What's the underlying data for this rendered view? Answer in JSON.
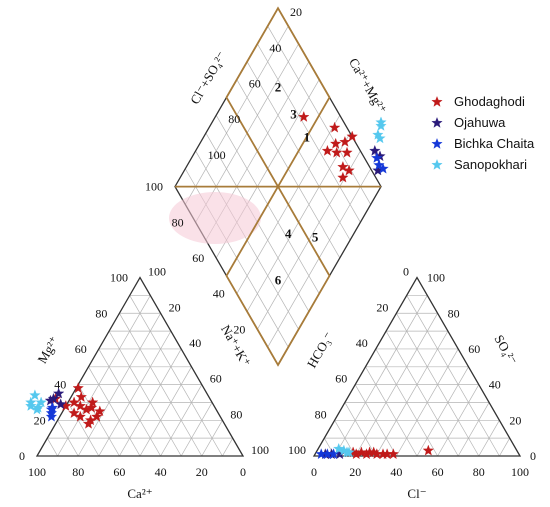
{
  "chart_data": {
    "type": "scatter",
    "diagram": "piper",
    "colors": {
      "frame": "#333333",
      "grid": "#b5b5b5",
      "zone": "#a87c3a",
      "highlight": "#f6c9d6"
    },
    "ticks": [
      "20",
      "40",
      "60",
      "80",
      "100"
    ],
    "zero_label": "0",
    "cation_axes": {
      "x_label": "Ca²⁺",
      "y_label": "Mg²⁺",
      "z_label": "Na⁺+K⁺"
    },
    "anion_axes": {
      "x_label": "Cl⁻",
      "y_label": "SO₄²⁻",
      "z_label": "HCO₃⁻"
    },
    "diamond_axes": {
      "upper_left": "Cl⁻+SO₄²⁻",
      "upper_right": "Ca²⁺+Mg²⁺"
    },
    "regions": [
      "1",
      "2",
      "3",
      "4",
      "5",
      "6"
    ],
    "legend_position": "top-right",
    "series": [
      {
        "name": "Ghodaghodi",
        "color": "#c01a1a",
        "glyph": "red-star-icon",
        "cation": [
          [
            63,
            26
          ],
          [
            60,
            27
          ],
          [
            65,
            28
          ],
          [
            58,
            30
          ],
          [
            62,
            33
          ],
          [
            68,
            22
          ],
          [
            66,
            18
          ],
          [
            70,
            24
          ],
          [
            64,
            20
          ],
          [
            72,
            28
          ],
          [
            60,
            22
          ],
          [
            57,
            25
          ],
          [
            61,
            38
          ],
          [
            75,
            32
          ],
          [
            67,
            30
          ]
        ],
        "anion": [
          [
            18,
            2
          ],
          [
            22,
            2
          ],
          [
            25,
            1
          ],
          [
            30,
            1
          ],
          [
            28,
            2
          ],
          [
            33,
            1
          ],
          [
            35,
            1
          ],
          [
            38,
            1
          ],
          [
            20,
            1
          ],
          [
            26,
            2
          ],
          [
            54,
            3
          ]
        ]
      },
      {
        "name": "Ojahuwa",
        "color": "#2a1a7a",
        "glyph": "navy-star-icon",
        "cation": [
          [
            74,
            29
          ],
          [
            76,
            32
          ],
          [
            72,
            35
          ],
          [
            78,
            31
          ]
        ],
        "anion": [
          [
            5,
            1
          ],
          [
            8,
            1
          ],
          [
            12,
            1
          ]
        ]
      },
      {
        "name": "Bichka Chaita",
        "color": "#1438d8",
        "glyph": "blue-star-icon",
        "cation": [
          [
            80,
            26
          ],
          [
            81,
            24
          ],
          [
            79,
            27
          ],
          [
            82,
            22
          ]
        ],
        "anion": [
          [
            3,
            1
          ],
          [
            6,
            1
          ],
          [
            9,
            1
          ]
        ]
      },
      {
        "name": "Sanopokhari",
        "color": "#55c8ee",
        "glyph": "cyan-star-icon",
        "cation": [
          [
            87,
            26
          ],
          [
            84,
            34
          ],
          [
            86,
            27
          ],
          [
            89,
            28
          ],
          [
            83,
            30
          ],
          [
            88,
            30
          ]
        ],
        "anion": [
          [
            13,
            3
          ],
          [
            16,
            2
          ],
          [
            10,
            4
          ],
          [
            15,
            2
          ]
        ]
      }
    ]
  }
}
